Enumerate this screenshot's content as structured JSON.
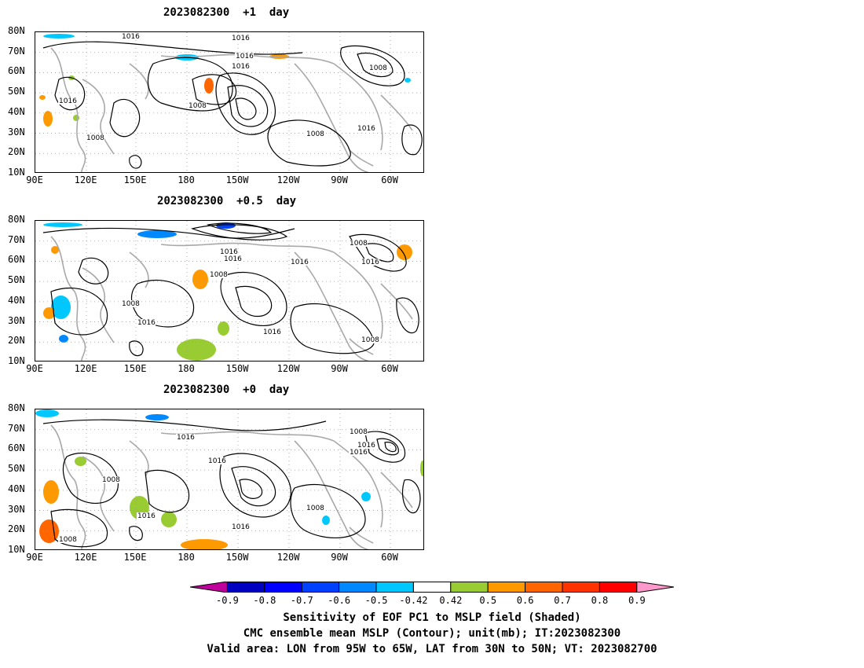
{
  "panels": [
    {
      "title": "2023082300  +1  day",
      "contour_labels": [
        "1016",
        "1016",
        "1016",
        "1016",
        "1008",
        "1008",
        "1016",
        "1008",
        "1008",
        "1016"
      ]
    },
    {
      "title": "2023082300  +0.5  day",
      "contour_labels": [
        "1016",
        "1016",
        "1008",
        "1016",
        "1008",
        "1016",
        "1016",
        "1008",
        "1016",
        "1008"
      ]
    },
    {
      "title": "2023082300  +0  day",
      "contour_labels": [
        "1016",
        "1016",
        "1008",
        "1016",
        "1008",
        "1016",
        "1016",
        "1008",
        "1008",
        "1016"
      ]
    }
  ],
  "lat_labels": [
    "80N",
    "70N",
    "60N",
    "50N",
    "40N",
    "30N",
    "20N",
    "10N"
  ],
  "lon_labels": [
    "90E",
    "120E",
    "150E",
    "180",
    "150W",
    "120W",
    "90W",
    "60W"
  ],
  "colorbar": {
    "labels": [
      "-0.9",
      "-0.8",
      "-0.7",
      "-0.6",
      "-0.5",
      "-0.42",
      "0.42",
      "0.5",
      "0.6",
      "0.7",
      "0.8",
      "0.9"
    ],
    "colors": [
      "#c0009c",
      "#0000c0",
      "#0000ff",
      "#0040ff",
      "#0088ff",
      "#00c8ff",
      "#ffffff",
      "#99cc33",
      "#ff9900",
      "#ff6600",
      "#ff3300",
      "#ff0000",
      "#ff99cc"
    ]
  },
  "captions": [
    "Sensitivity of EOF PC1 to MSLP field (Shaded)",
    "CMC ensemble mean MSLP (Contour); unit(mb); IT:2023082300",
    "Valid area: LON from 95W to 65W, LAT from 30N to 50N; VT: 2023082700"
  ]
}
